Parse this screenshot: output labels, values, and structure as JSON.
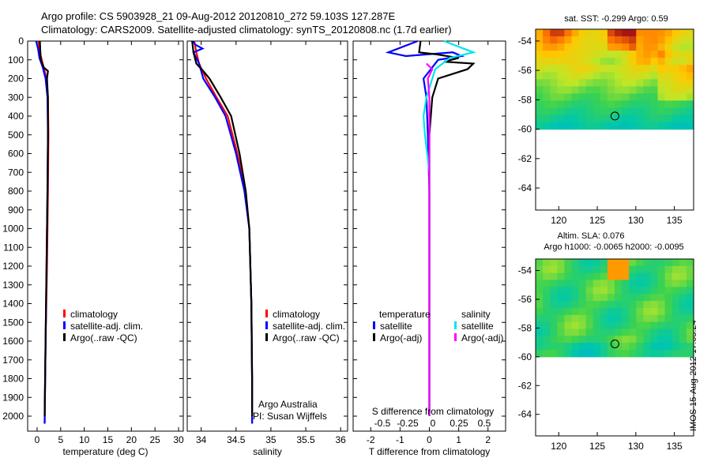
{
  "header": {
    "line1": "Argo profile: CS 5903928_21 09-Aug-2012 20120810_272 59.103S 127.287E",
    "line2": "Climatology: CARS2009. Satellite-adjusted climatology: synTS_20120808.nc (1.7d earlier)"
  },
  "side_label": "IMOS 15-Aug-2012 17:03:24",
  "colors": {
    "climatology": "#ff0000",
    "satellite": "#0000ff",
    "argo": "#000000",
    "satellite_s": "#00e5ee",
    "argo_s": "#ff00ff"
  },
  "chart_data": [
    {
      "type": "line",
      "xlabel": "temperature (deg C)",
      "xlim": [
        -2,
        31
      ],
      "xticks": [
        "0",
        "5",
        "10",
        "15",
        "20",
        "25",
        "30"
      ],
      "ylim": [
        2080,
        0
      ],
      "yticks": [
        "0",
        "100",
        "200",
        "300",
        "400",
        "500",
        "600",
        "700",
        "800",
        "900",
        "1000",
        "1100",
        "1200",
        "1300",
        "1400",
        "1500",
        "1600",
        "1700",
        "1800",
        "1900",
        "2000"
      ],
      "legend": [
        "climatology",
        "satellite-adj. clim.",
        "Argo(..raw -QC)"
      ],
      "series": [
        {
          "name": "climatology",
          "points": [
            [
              0.3,
              0
            ],
            [
              0.6,
              60
            ],
            [
              1.0,
              100
            ],
            [
              1.5,
              150
            ],
            [
              2.0,
              200
            ],
            [
              2.3,
              300
            ],
            [
              2.4,
              500
            ],
            [
              2.3,
              800
            ],
            [
              2.1,
              1200
            ],
            [
              1.8,
              1600
            ],
            [
              1.6,
              2040
            ]
          ]
        },
        {
          "name": "satellite-adj. clim.",
          "points": [
            [
              -0.2,
              0
            ],
            [
              0.2,
              40
            ],
            [
              0.5,
              90
            ],
            [
              1.2,
              140
            ],
            [
              1.8,
              200
            ],
            [
              2.2,
              300
            ],
            [
              2.3,
              500
            ],
            [
              2.2,
              800
            ],
            [
              2.0,
              1200
            ],
            [
              1.8,
              1600
            ],
            [
              1.6,
              2040
            ]
          ]
        },
        {
          "name": "Argo(..raw -QC)",
          "points": [
            [
              0.6,
              0
            ],
            [
              0.7,
              60
            ],
            [
              0.8,
              100
            ],
            [
              1.4,
              140
            ],
            [
              2.3,
              160
            ],
            [
              2.1,
              200
            ],
            [
              2.3,
              300
            ],
            [
              2.3,
              500
            ],
            [
              2.2,
              800
            ],
            [
              2.0,
              1200
            ],
            [
              1.8,
              1600
            ],
            [
              1.6,
              2000
            ]
          ]
        }
      ]
    },
    {
      "type": "line",
      "xlabel": "salinity",
      "xlim": [
        33.8,
        36.1
      ],
      "xticks": [
        "34",
        "34.5",
        "35",
        "35.5",
        "36"
      ],
      "ylim": [
        2080,
        0
      ],
      "legend": [
        "climatology",
        "satellite-adj. clim.",
        "Argo(..raw -QC)"
      ],
      "annotation": [
        "Argo Australia",
        "PI: Susan Wijffels"
      ],
      "series": [
        {
          "name": "climatology",
          "points": [
            [
              33.9,
              0
            ],
            [
              33.93,
              60
            ],
            [
              33.97,
              120
            ],
            [
              34.07,
              200
            ],
            [
              34.22,
              300
            ],
            [
              34.38,
              400
            ],
            [
              34.52,
              600
            ],
            [
              34.63,
              800
            ],
            [
              34.69,
              1000
            ],
            [
              34.72,
              1400
            ],
            [
              34.73,
              1800
            ],
            [
              34.73,
              2040
            ]
          ]
        },
        {
          "name": "satellite-adj. clim.",
          "points": [
            [
              33.88,
              0
            ],
            [
              33.92,
              20
            ],
            [
              34.02,
              40
            ],
            [
              33.89,
              60
            ],
            [
              33.97,
              120
            ],
            [
              34.03,
              200
            ],
            [
              34.2,
              300
            ],
            [
              34.35,
              400
            ],
            [
              34.5,
              600
            ],
            [
              34.62,
              800
            ],
            [
              34.69,
              1000
            ],
            [
              34.72,
              1400
            ],
            [
              34.73,
              1800
            ],
            [
              34.73,
              2040
            ]
          ]
        },
        {
          "name": "Argo(..raw -QC)",
          "points": [
            [
              33.87,
              0
            ],
            [
              33.89,
              60
            ],
            [
              33.93,
              120
            ],
            [
              34.03,
              160
            ],
            [
              34.12,
              200
            ],
            [
              34.28,
              300
            ],
            [
              34.43,
              400
            ],
            [
              34.55,
              600
            ],
            [
              34.64,
              800
            ],
            [
              34.69,
              1000
            ],
            [
              34.72,
              1400
            ],
            [
              34.73,
              1800
            ],
            [
              34.73,
              2000
            ]
          ]
        }
      ]
    },
    {
      "type": "line",
      "xlabel": "T difference from climatology",
      "top_xlabel": "S difference from climatology",
      "xlim": [
        -2.6,
        2.6
      ],
      "xticks": [
        "-2",
        "-1",
        "0",
        "1",
        "2"
      ],
      "top_xticks": [
        "-0.5",
        "-0.25",
        "0",
        "0.25",
        "0.5"
      ],
      "ylim": [
        2080,
        0
      ],
      "legend": [
        {
          "group": "temperature",
          "items": [
            "satellite",
            "Argo(-adj)"
          ]
        },
        {
          "group": "salinity",
          "items": [
            "satellite",
            "Argo(-adj)"
          ]
        }
      ],
      "series": [
        {
          "name": "temperature satellite",
          "points": [
            [
              -0.4,
              0
            ],
            [
              -1.4,
              60
            ],
            [
              -0.8,
              80
            ],
            [
              0.8,
              60
            ],
            [
              1.1,
              80
            ],
            [
              0.3,
              100
            ],
            [
              0.1,
              140
            ],
            [
              -0.2,
              200
            ],
            [
              -0.1,
              300
            ],
            [
              -0.05,
              500
            ],
            [
              0.0,
              800
            ],
            [
              0.0,
              1200
            ],
            [
              0.0,
              1600
            ],
            [
              0.0,
              2000
            ]
          ]
        },
        {
          "name": "temperature Argo(-adj)",
          "points": [
            [
              -0.3,
              0
            ],
            [
              -0.35,
              60
            ],
            [
              0.2,
              70
            ],
            [
              1.0,
              90
            ],
            [
              0.5,
              110
            ],
            [
              1.5,
              120
            ],
            [
              1.3,
              150
            ],
            [
              0.3,
              200
            ],
            [
              0.1,
              300
            ],
            [
              0.0,
              500
            ],
            [
              0.0,
              800
            ],
            [
              0.0,
              1200
            ],
            [
              0.0,
              1600
            ],
            [
              0.0,
              2000
            ]
          ]
        },
        {
          "name": "salinity satellite",
          "points": [
            [
              0.5,
              0
            ],
            [
              1.5,
              60
            ],
            [
              0.7,
              90
            ],
            [
              0.2,
              150
            ],
            [
              -0.1,
              300
            ],
            [
              -0.2,
              400
            ],
            [
              -0.15,
              500
            ],
            [
              0.0,
              700
            ],
            [
              0.0,
              1000
            ],
            [
              0.0,
              1500
            ],
            [
              0.0,
              2000
            ]
          ]
        },
        {
          "name": "salinity Argo(-adj)",
          "points": [
            [
              -0.1,
              120
            ],
            [
              0.1,
              150
            ],
            [
              -0.05,
              200
            ],
            [
              0.0,
              300
            ],
            [
              0.0,
              500
            ],
            [
              0.0,
              800
            ],
            [
              0.0,
              1200
            ],
            [
              0.0,
              1600
            ],
            [
              0.0,
              2000
            ]
          ]
        }
      ]
    },
    {
      "type": "heatmap",
      "title": "sat. SST: -0.299 Argo: 0.59",
      "xticks": [
        "120",
        "125",
        "130",
        "135"
      ],
      "yticks": [
        "-54",
        "-56",
        "-58",
        "-60",
        "-62",
        "-64"
      ],
      "xlim": [
        117,
        137.5
      ],
      "ylim": [
        -65.5,
        -53.2
      ],
      "marker": [
        127.287,
        -59.103
      ]
    },
    {
      "type": "heatmap",
      "title": "Altim. SLA: 0.076",
      "subtitle": "Argo h1000: -0.0065 h2000: -0.0095",
      "xticks": [
        "120",
        "125",
        "130",
        "135"
      ],
      "yticks": [
        "-54",
        "-56",
        "-58",
        "-60",
        "-62",
        "-64"
      ],
      "xlim": [
        117,
        137.5
      ],
      "ylim": [
        -65.5,
        -53.2
      ],
      "marker": [
        127.287,
        -59.103
      ]
    }
  ]
}
